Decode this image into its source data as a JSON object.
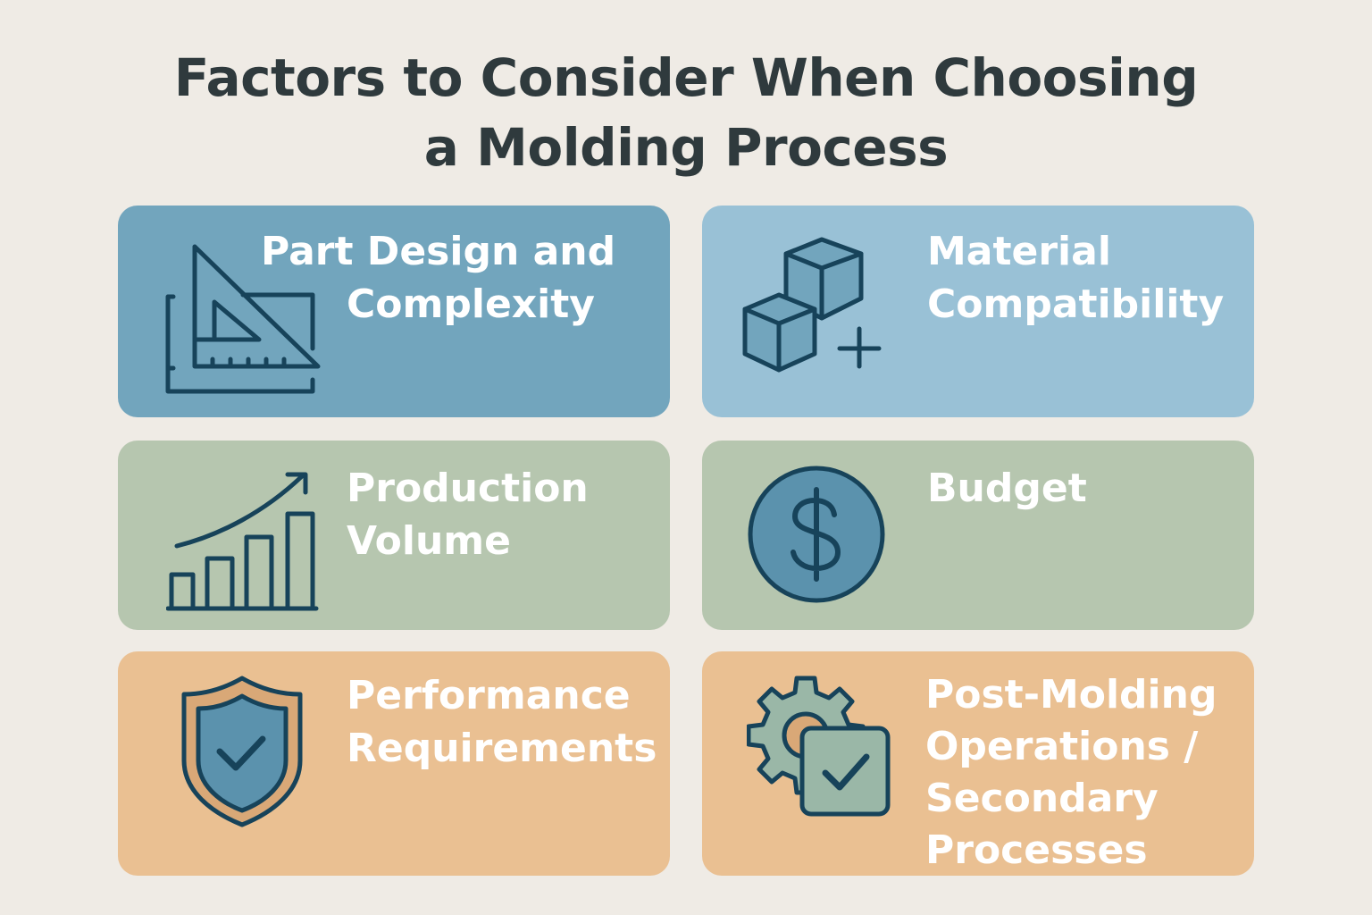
{
  "title": {
    "lines": [
      "Factors to Consider When Choosing",
      "a Molding Process"
    ]
  },
  "colors": {
    "background": "#efebe5",
    "title": "#2f3a3d",
    "blue": "#72a5bd",
    "light_blue": "#99c1d6",
    "green": "#b6c6af",
    "orange": "#eac092",
    "icon_stroke": "#17435a"
  },
  "cards": [
    {
      "lines": [
        "Part Design and",
        "Complexity"
      ],
      "icon": "triangle-ruler-icon"
    },
    {
      "lines": [
        "Material",
        "Compatibility"
      ],
      "icon": "cubes-plus-icon"
    },
    {
      "lines": [
        "Production",
        "Volume"
      ],
      "icon": "growth-chart-icon"
    },
    {
      "lines": [
        "Budget"
      ],
      "icon": "dollar-coin-icon"
    },
    {
      "lines": [
        "Performance",
        "Requirements"
      ],
      "icon": "shield-check-icon"
    },
    {
      "lines": [
        "Post-Molding",
        "Operations /",
        "Secondary",
        "Processes"
      ],
      "icon": "gear-checkbox-icon"
    }
  ]
}
